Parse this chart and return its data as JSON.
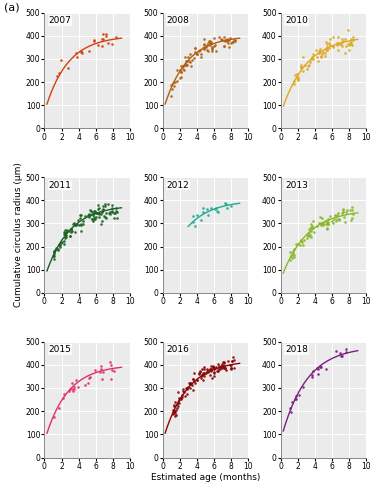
{
  "panels": [
    {
      "year": "2007",
      "color": "#D44010",
      "n_points": 22,
      "seed": 42,
      "x_min": 1.0,
      "x_max": 8.5,
      "Linf": 400,
      "K": 0.38,
      "t0": -0.5,
      "noise": 25,
      "line_x0": 0.3,
      "line_x1": 9.0
    },
    {
      "year": "2008",
      "color": "#B06010",
      "n_points": 90,
      "seed": 7,
      "x_min": 1.0,
      "x_max": 8.5,
      "Linf": 400,
      "K": 0.38,
      "t0": -0.5,
      "noise": 18,
      "line_x0": 0.3,
      "line_x1": 9.0
    },
    {
      "year": "2010",
      "color": "#E0A820",
      "n_points": 75,
      "seed": 13,
      "x_min": 1.5,
      "x_max": 8.5,
      "Linf": 400,
      "K": 0.34,
      "t0": -0.5,
      "noise": 18,
      "line_x0": 0.3,
      "line_x1": 9.0
    },
    {
      "year": "2011",
      "color": "#1A6020",
      "n_points": 110,
      "seed": 21,
      "x_min": 1.0,
      "x_max": 8.5,
      "Linf": 380,
      "K": 0.36,
      "t0": -0.5,
      "noise": 20,
      "line_x0": 0.3,
      "line_x1": 9.0
    },
    {
      "year": "2012",
      "color": "#20A898",
      "n_points": 18,
      "seed": 33,
      "x_min": 3.5,
      "x_max": 8.5,
      "Linf": 400,
      "K": 0.36,
      "t0": -0.5,
      "noise": 15,
      "line_x0": 3.0,
      "line_x1": 9.0
    },
    {
      "year": "2013",
      "color": "#88B828",
      "n_points": 80,
      "seed": 55,
      "x_min": 1.0,
      "x_max": 8.5,
      "Linf": 360,
      "K": 0.34,
      "t0": -0.5,
      "noise": 15,
      "line_x0": 0.3,
      "line_x1": 9.0
    },
    {
      "year": "2015",
      "color": "#E03070",
      "n_points": 28,
      "seed": 89,
      "x_min": 1.0,
      "x_max": 8.5,
      "Linf": 400,
      "K": 0.38,
      "t0": -0.5,
      "noise": 18,
      "line_x0": 0.3,
      "line_x1": 9.0
    },
    {
      "year": "2016",
      "color": "#880808",
      "n_points": 120,
      "seed": 144,
      "x_min": 1.0,
      "x_max": 8.5,
      "Linf": 420,
      "K": 0.36,
      "t0": -0.5,
      "noise": 15,
      "line_x0": 0.3,
      "line_x1": 9.0
    },
    {
      "year": "2018",
      "color": "#7A2080",
      "n_points": 24,
      "seed": 233,
      "x_min": 1.0,
      "x_max": 8.5,
      "Linf": 480,
      "K": 0.34,
      "t0": -0.5,
      "noise": 15,
      "line_x0": 0.3,
      "line_x1": 9.0
    }
  ],
  "ylim": [
    0,
    500
  ],
  "xlim": [
    0,
    10
  ],
  "yticks": [
    0,
    100,
    200,
    300,
    400,
    500
  ],
  "xticks": [
    0,
    2,
    4,
    6,
    8,
    10
  ],
  "ylabel": "Cumulative circulus radius (μm)",
  "xlabel": "Estimated age (months)",
  "panel_label": "(a)",
  "bg_color": "#ebebeb",
  "grid_color": "#ffffff",
  "point_size": 3.5,
  "line_width": 1.0,
  "year_fontsize": 6.5,
  "tick_fontsize": 5.5,
  "label_fontsize": 6.5,
  "panel_label_fontsize": 8
}
